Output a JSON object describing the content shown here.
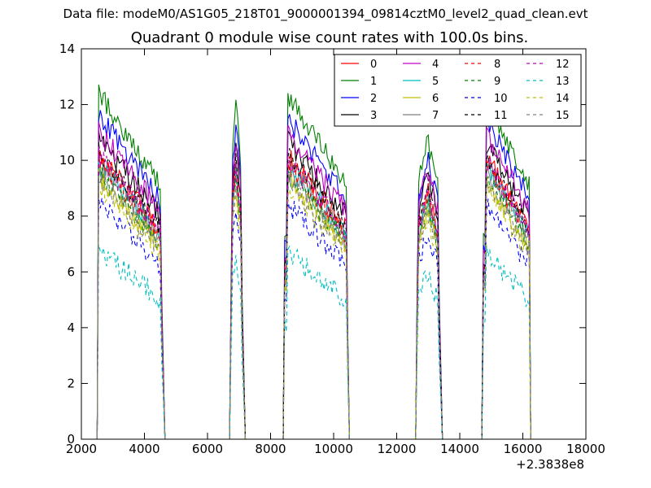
{
  "suptitle": "Data file: modeM0/AS1G05_218T01_9000001394_09814cztM0_level2_quad_clean.evt",
  "chart_data": {
    "type": "line",
    "title": "Quadrant 0 module wise count rates with 100.0s bins.",
    "xlabel": "",
    "ylabel": "",
    "xlim": [
      2000,
      18000
    ],
    "ylim": [
      0,
      14
    ],
    "x_offset_label": "+2.3838e8",
    "xticks": [
      "2000",
      "4000",
      "6000",
      "8000",
      "10000",
      "12000",
      "14000",
      "16000",
      "18000"
    ],
    "yticks": [
      "0",
      "2",
      "4",
      "6",
      "8",
      "10",
      "12",
      "14"
    ],
    "legend_position": "top-right",
    "orbit_segments": [
      {
        "start": 2550,
        "end": 4500,
        "drop_end": 4650
      },
      {
        "start": 6750,
        "end": 7050,
        "drop_end": 7200
      },
      {
        "start": 8450,
        "end": 10400,
        "drop_end": 10500
      },
      {
        "start": 12650,
        "end": 13300,
        "drop_end": 13450
      },
      {
        "start": 14750,
        "end": 16200,
        "drop_end": 16250
      }
    ],
    "series": [
      {
        "name": "0",
        "color": "#ff0000",
        "dash": "solid",
        "level": 8.9
      },
      {
        "name": "1",
        "color": "#008000",
        "dash": "solid",
        "level": 10.8
      },
      {
        "name": "2",
        "color": "#0000ff",
        "dash": "solid",
        "level": 10.1
      },
      {
        "name": "3",
        "color": "#000000",
        "dash": "solid",
        "level": 9.4
      },
      {
        "name": "4",
        "color": "#bf00bf",
        "dash": "solid",
        "level": 9.6
      },
      {
        "name": "5",
        "color": "#00bfbf",
        "dash": "solid",
        "level": 8.6
      },
      {
        "name": "6",
        "color": "#bfbf00",
        "dash": "solid",
        "level": 8.2
      },
      {
        "name": "7",
        "color": "#808080",
        "dash": "solid",
        "level": 8.5
      },
      {
        "name": "8",
        "color": "#ff0000",
        "dash": "dashed",
        "level": 8.7
      },
      {
        "name": "9",
        "color": "#008000",
        "dash": "dashed",
        "level": 8.3
      },
      {
        "name": "10",
        "color": "#0000ff",
        "dash": "dashed",
        "level": 7.4
      },
      {
        "name": "11",
        "color": "#000000",
        "dash": "dashed",
        "level": 9.0
      },
      {
        "name": "12",
        "color": "#bf00bf",
        "dash": "dashed",
        "level": 8.8
      },
      {
        "name": "13",
        "color": "#00bfbf",
        "dash": "dashed",
        "level": 5.9
      },
      {
        "name": "14",
        "color": "#bfbf00",
        "dash": "dashed",
        "level": 7.9
      },
      {
        "name": "15",
        "color": "#808080",
        "dash": "dashed",
        "level": 8.1
      }
    ]
  }
}
